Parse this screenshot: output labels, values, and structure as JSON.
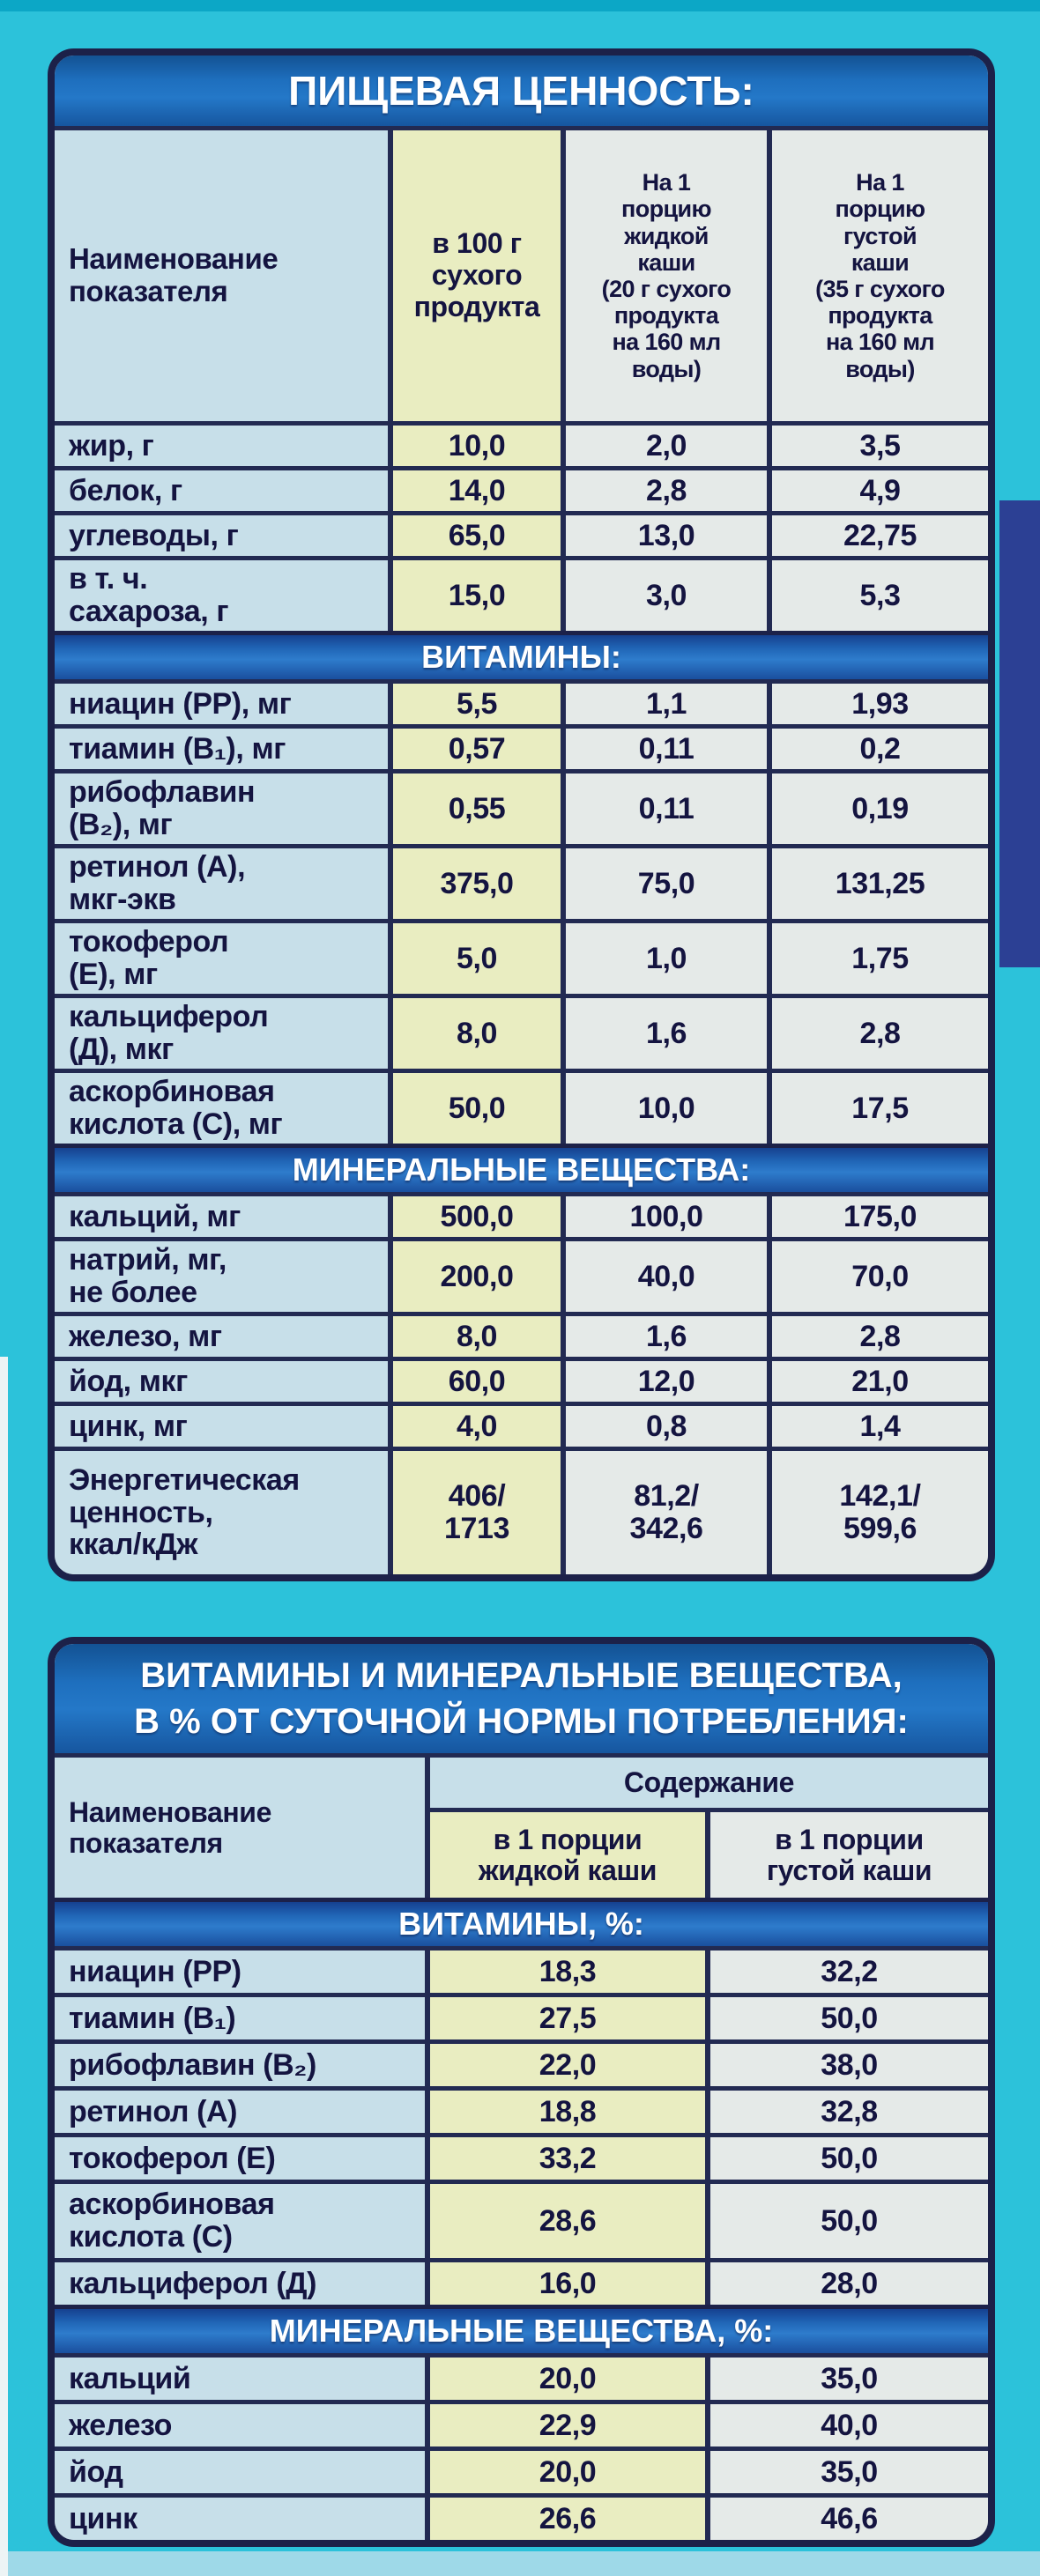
{
  "colors": {
    "background_cyan": "#2cc2da",
    "frame_navy": "#1c2149",
    "band_blue": "#1e6fbe",
    "cell_blue": "#c7dfe9",
    "cell_yellow": "#e9edc1",
    "cell_white": "#e5eae8",
    "side_band_navy": "#2c4094",
    "text_navy": "#141440"
  },
  "table1": {
    "title": "ПИЩЕВАЯ ЦЕННОСТЬ:",
    "headers": {
      "name": "Наименование\nпоказателя",
      "per100": "в 100 г\nсухого\nпродукта",
      "liquid": "На 1\nпорцию\nжидкой\nкаши\n(20 г сухого\nпродукта\nна 160 мл\nводы)",
      "thick": "На 1\nпорцию\nгустой\nкаши\n(35 г сухого\nпродукта\nна 160 мл\nводы)"
    },
    "rows": [
      {
        "label": "жир, г",
        "c1": "10,0",
        "c2": "2,0",
        "c3": "3,5"
      },
      {
        "label": "белок, г",
        "c1": "14,0",
        "c2": "2,8",
        "c3": "4,9"
      },
      {
        "label": "углеводы, г",
        "c1": "65,0",
        "c2": "13,0",
        "c3": "22,75"
      },
      {
        "label": "в т. ч.\nсахароза, г",
        "c1": "15,0",
        "c2": "3,0",
        "c3": "5,3"
      },
      {
        "label": "ВИТАМИНЫ:"
      },
      {
        "label": "ниацин (РР), мг",
        "c1": "5,5",
        "c2": "1,1",
        "c3": "1,93"
      },
      {
        "label": "тиамин (В₁), мг",
        "c1": "0,57",
        "c2": "0,11",
        "c3": "0,2"
      },
      {
        "label": "рибофлавин\n(В₂), мг",
        "c1": "0,55",
        "c2": "0,11",
        "c3": "0,19"
      },
      {
        "label": "ретинол (А),\nмкг-экв",
        "c1": "375,0",
        "c2": "75,0",
        "c3": "131,25"
      },
      {
        "label": "токоферол\n(Е), мг",
        "c1": "5,0",
        "c2": "1,0",
        "c3": "1,75"
      },
      {
        "label": "кальциферол\n(Д), мкг",
        "c1": "8,0",
        "c2": "1,6",
        "c3": "2,8"
      },
      {
        "label": "аскорбиновая\nкислота (С), мг",
        "c1": "50,0",
        "c2": "10,0",
        "c3": "17,5"
      },
      {
        "label": "МИНЕРАЛЬНЫЕ  ВЕЩЕСТВА:"
      },
      {
        "label": "кальций, мг",
        "c1": "500,0",
        "c2": "100,0",
        "c3": "175,0"
      },
      {
        "label": "натрий, мг,\nне более",
        "c1": "200,0",
        "c2": "40,0",
        "c3": "70,0"
      },
      {
        "label": "железо, мг",
        "c1": "8,0",
        "c2": "1,6",
        "c3": "2,8"
      },
      {
        "label": "йод, мкг",
        "c1": "60,0",
        "c2": "12,0",
        "c3": "21,0"
      },
      {
        "label": "цинк, мг",
        "c1": "4,0",
        "c2": "0,8",
        "c3": "1,4"
      },
      {
        "label": "Энергетическая\nценность,\nккал/кДж",
        "c1": "406/\n1713",
        "c2": "81,2/\n342,6",
        "c3": "142,1/\n599,6"
      }
    ]
  },
  "table2": {
    "title": "ВИТАМИНЫ И МИНЕРАЛЬНЫЕ ВЕЩЕСТВА,\nВ  %  ОТ СУТОЧНОЙ НОРМЫ ПОТРЕБЛЕНИЯ:",
    "headers": {
      "name": "Наименование\nпоказателя",
      "group": "Содержание",
      "liquid": "в 1 порции\nжидкой каши",
      "thick": "в 1 порции\nгустой каши"
    },
    "rows": [
      {
        "label": "ВИТАМИНЫ, %:"
      },
      {
        "label": "ниацин (РР)",
        "c1": "18,3",
        "c2": "32,2"
      },
      {
        "label": "тиамин (В₁)",
        "c1": "27,5",
        "c2": "50,0"
      },
      {
        "label": "рибофлавин (В₂)",
        "c1": "22,0",
        "c2": "38,0"
      },
      {
        "label": "ретинол (А)",
        "c1": "18,8",
        "c2": "32,8"
      },
      {
        "label": "токоферол (Е)",
        "c1": "33,2",
        "c2": "50,0"
      },
      {
        "label": "аскорбиновая\nкислота (С)",
        "c1": "28,6",
        "c2": "50,0"
      },
      {
        "label": "кальциферол (Д)",
        "c1": "16,0",
        "c2": "28,0"
      },
      {
        "label": "МИНЕРАЛЬНЫЕ  ВЕЩЕСТВА, %:"
      },
      {
        "label": "кальций",
        "c1": "20,0",
        "c2": "35,0"
      },
      {
        "label": "железо",
        "c1": "22,9",
        "c2": "40,0"
      },
      {
        "label": "йод",
        "c1": "20,0",
        "c2": "35,0"
      },
      {
        "label": "цинк",
        "c1": "26,6",
        "c2": "46,6"
      }
    ]
  }
}
